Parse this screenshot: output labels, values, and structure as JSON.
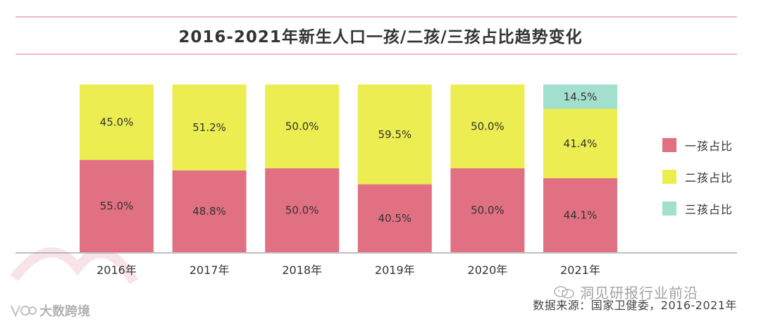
{
  "chart_data": {
    "type": "bar",
    "stacked": true,
    "title": "2016-2021年新生人口一孩/二孩/三孩占比趋势变化",
    "categories": [
      "2016年",
      "2017年",
      "2018年",
      "2019年",
      "2020年",
      "2021年"
    ],
    "series": [
      {
        "name": "一孩占比",
        "color": "#e27083",
        "values": [
          55.0,
          48.8,
          50.0,
          40.5,
          50.0,
          44.1
        ],
        "labels": [
          "55.0%",
          "48.8%",
          "50.0%",
          "40.5%",
          "50.0%",
          "44.1%"
        ]
      },
      {
        "name": "二孩占比",
        "color": "#ebed50",
        "values": [
          45.0,
          51.2,
          50.0,
          59.5,
          50.0,
          41.4
        ],
        "labels": [
          "45.0%",
          "51.2%",
          "50.0%",
          "59.5%",
          "50.0%",
          "41.4%"
        ]
      },
      {
        "name": "三孩占比",
        "color": "#a2e0cd",
        "values": [
          0,
          0,
          0,
          0,
          0,
          14.5
        ],
        "labels": [
          "",
          "",
          "",
          "",
          "",
          "14.5%"
        ]
      }
    ],
    "ylim": [
      0,
      100
    ],
    "xlabel": "",
    "ylabel": "",
    "legend": "right"
  },
  "source": "数据来源：国家卫健委，2016-2021年",
  "wechat_account": "洞见研报行业前沿",
  "watermark": "大数跨境"
}
